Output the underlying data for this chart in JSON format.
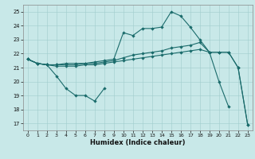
{
  "xlabel": "Humidex (Indice chaleur)",
  "xlim": [
    -0.5,
    23.5
  ],
  "ylim": [
    16.5,
    25.5
  ],
  "yticks": [
    17,
    18,
    19,
    20,
    21,
    22,
    23,
    24,
    25
  ],
  "xticks": [
    0,
    1,
    2,
    3,
    4,
    5,
    6,
    7,
    8,
    9,
    10,
    11,
    12,
    13,
    14,
    15,
    16,
    17,
    18,
    19,
    20,
    21,
    22,
    23
  ],
  "bg_color": "#c8e8e8",
  "line_color": "#1a6b6b",
  "lines": [
    [
      21.6,
      21.3,
      21.2,
      20.4,
      19.5,
      19.0,
      19.0,
      18.6,
      19.5,
      null,
      null,
      null,
      null,
      null,
      null,
      null,
      null,
      null,
      null,
      null,
      null,
      null,
      null,
      null
    ],
    [
      21.6,
      21.3,
      21.2,
      21.1,
      21.1,
      21.1,
      21.2,
      21.2,
      21.3,
      21.4,
      21.5,
      21.6,
      21.7,
      21.8,
      21.9,
      22.0,
      22.1,
      22.2,
      22.3,
      22.1,
      22.1,
      22.1,
      21.0,
      16.9
    ],
    [
      21.6,
      21.3,
      21.2,
      21.2,
      21.2,
      21.2,
      21.3,
      21.3,
      21.4,
      21.5,
      21.7,
      21.9,
      22.0,
      22.1,
      22.2,
      22.4,
      22.5,
      22.6,
      22.8,
      22.1,
      22.1,
      22.1,
      21.0,
      16.9
    ],
    [
      21.6,
      21.3,
      21.2,
      21.2,
      21.3,
      21.3,
      21.3,
      21.4,
      21.5,
      21.6,
      23.5,
      23.3,
      23.8,
      23.8,
      23.9,
      25.0,
      24.7,
      23.9,
      23.0,
      22.1,
      20.0,
      18.2,
      null,
      null
    ]
  ]
}
